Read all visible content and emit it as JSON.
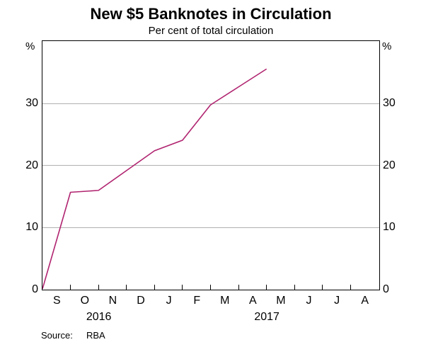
{
  "title": "New $5 Banknotes in Circulation",
  "subtitle": "Per cent of total circulation",
  "source": {
    "label": "Source:",
    "value": "RBA"
  },
  "colors": {
    "line": "#b02470",
    "grid": "#b0b0b0",
    "axis": "#000000",
    "background": "#ffffff",
    "text": "#000000"
  },
  "chart_data": {
    "type": "line",
    "title": "New $5 Banknotes in Circulation",
    "subtitle": "Per cent of total circulation",
    "xlabel": "",
    "ylabel": "%",
    "y_axis_symbol": "%",
    "ylim": [
      0,
      40
    ],
    "y_ticks": [
      0,
      10,
      20,
      30
    ],
    "grid": "horizontal",
    "x_months": [
      "S",
      "O",
      "N",
      "D",
      "J",
      "F",
      "M",
      "A",
      "M",
      "J",
      "J",
      "A"
    ],
    "x_month_count": 12,
    "year_labels": [
      {
        "label": "2016",
        "start_month": 0,
        "end_month": 4
      },
      {
        "label": "2017",
        "start_month": 4,
        "end_month": 12
      }
    ],
    "series": [
      {
        "name": "New $5 banknotes, per cent of total circulation",
        "color": "#b02470",
        "x_month_boundaries": [
          0,
          1,
          2,
          3,
          4,
          5,
          6,
          7,
          8
        ],
        "x_dates": [
          "Sep 2016",
          "Oct 2016",
          "Nov 2016",
          "Dec 2016",
          "Jan 2017",
          "Feb 2017",
          "Mar 2017",
          "Apr 2017",
          "May 2017"
        ],
        "values": [
          0,
          15.6,
          15.9,
          19.1,
          22.3,
          24.0,
          29.7,
          32.6,
          35.5
        ]
      }
    ]
  }
}
